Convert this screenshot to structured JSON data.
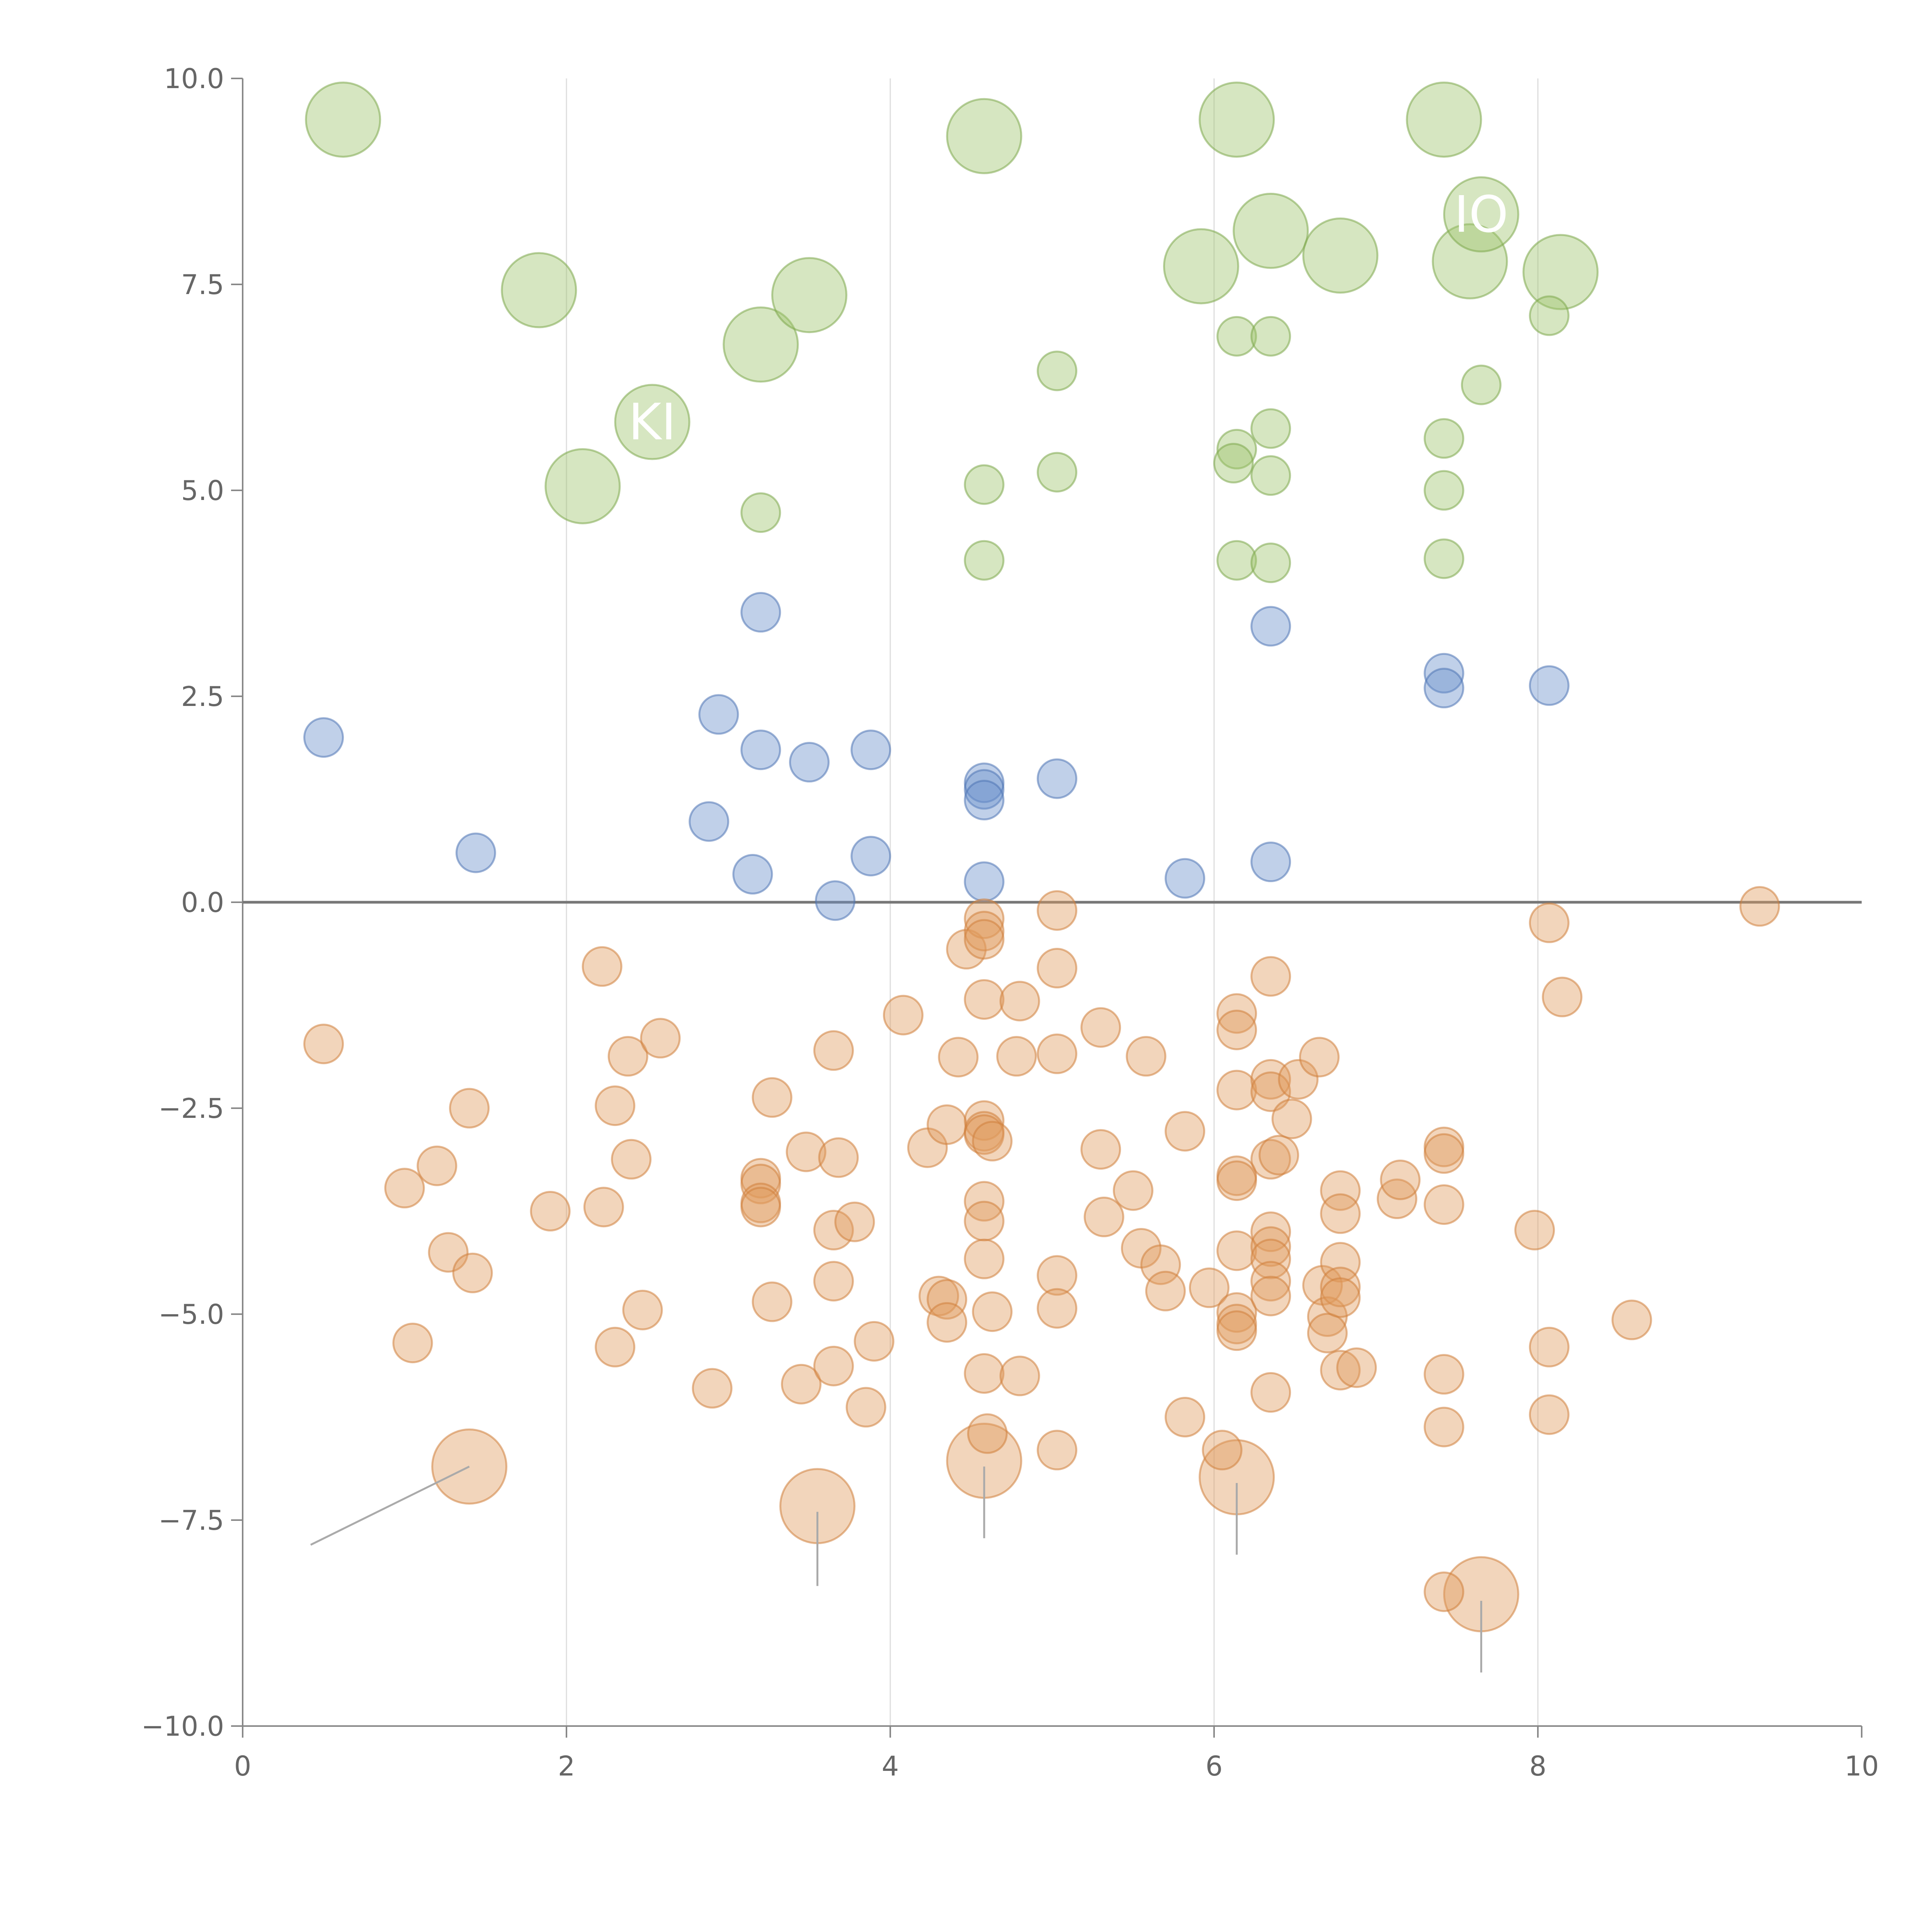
{
  "chart_data": {
    "type": "scatter",
    "title": "",
    "xlabel": "",
    "ylabel": "",
    "xlim": [
      0,
      10
    ],
    "ylim": [
      -10,
      10
    ],
    "grid": "vertical",
    "zero_line": true,
    "x_ticks": [
      "0",
      "2",
      "4",
      "6",
      "8",
      "10"
    ],
    "x_tick_values": [
      0,
      2,
      4,
      6,
      8,
      10
    ],
    "y_ticks": [
      "10.0",
      "7.5",
      "5.0",
      "2.5",
      "0.0",
      "−2.5",
      "−5.0",
      "−7.5",
      "−10.0"
    ],
    "y_tick_values": [
      10,
      7.5,
      5,
      2.5,
      0,
      -2.5,
      -5,
      -7.5,
      -10
    ],
    "colors": {
      "green": "#9dc46b",
      "green_stroke": "#7ea84d",
      "blue": "#6a8fcb",
      "blue_stroke": "#4f74b5",
      "orange": "#e09a5c",
      "orange_stroke": "#cf7f3d",
      "label": "#ffffff"
    },
    "series": [
      {
        "name": "green",
        "color": "green",
        "points": [
          [
            0.62,
            9.5,
            "L"
          ],
          [
            1.83,
            7.43,
            "L"
          ],
          [
            2.1,
            5.05,
            "L"
          ],
          [
            2.53,
            5.83,
            "L"
          ],
          [
            3.2,
            6.77,
            "L"
          ],
          [
            3.5,
            7.37,
            "L"
          ],
          [
            4.58,
            9.3,
            "L"
          ],
          [
            5.92,
            7.72,
            "L"
          ],
          [
            6.14,
            9.5,
            "L"
          ],
          [
            6.35,
            8.15,
            "L"
          ],
          [
            6.78,
            7.85,
            "L"
          ],
          [
            7.42,
            9.5,
            "L"
          ],
          [
            7.58,
            7.78,
            "L"
          ],
          [
            7.65,
            8.35,
            "L"
          ],
          [
            8.14,
            7.65,
            "L"
          ],
          [
            8.07,
            7.12,
            "S"
          ],
          [
            6.14,
            6.87,
            "S"
          ],
          [
            6.35,
            6.87,
            "S"
          ],
          [
            5.03,
            6.45,
            "S"
          ],
          [
            7.65,
            6.28,
            "S"
          ],
          [
            6.35,
            5.75,
            "S"
          ],
          [
            7.42,
            5.63,
            "S"
          ],
          [
            6.14,
            5.5,
            "S"
          ],
          [
            6.12,
            5.33,
            "S"
          ],
          [
            5.03,
            5.22,
            "S"
          ],
          [
            6.35,
            5.18,
            "S"
          ],
          [
            4.58,
            5.07,
            "S"
          ],
          [
            7.42,
            5.0,
            "S"
          ],
          [
            3.2,
            4.73,
            "S"
          ],
          [
            4.58,
            4.15,
            "S"
          ],
          [
            6.14,
            4.15,
            "S"
          ],
          [
            6.35,
            4.12,
            "S"
          ],
          [
            7.42,
            4.17,
            "S"
          ]
        ]
      },
      {
        "name": "blue",
        "color": "blue",
        "points": [
          [
            0.5,
            2.0,
            "S"
          ],
          [
            1.44,
            0.6,
            "S"
          ],
          [
            2.94,
            2.28,
            "S"
          ],
          [
            2.88,
            0.98,
            "S"
          ],
          [
            3.15,
            0.34,
            "S"
          ],
          [
            3.2,
            3.52,
            "S"
          ],
          [
            3.2,
            1.85,
            "S"
          ],
          [
            3.5,
            1.7,
            "S"
          ],
          [
            3.66,
            0.02,
            "S"
          ],
          [
            3.88,
            1.85,
            "S"
          ],
          [
            3.88,
            0.56,
            "S"
          ],
          [
            4.58,
            1.45,
            "S"
          ],
          [
            4.58,
            1.37,
            "S"
          ],
          [
            4.58,
            1.24,
            "S"
          ],
          [
            4.58,
            0.25,
            "S"
          ],
          [
            5.03,
            1.5,
            "S"
          ],
          [
            5.82,
            0.29,
            "S"
          ],
          [
            6.35,
            3.35,
            "S"
          ],
          [
            6.35,
            0.49,
            "S"
          ],
          [
            7.42,
            2.78,
            "S"
          ],
          [
            7.42,
            2.6,
            "S"
          ],
          [
            8.07,
            2.63,
            "S"
          ]
        ]
      },
      {
        "name": "orange",
        "color": "orange",
        "points": [
          [
            1.4,
            -6.85,
            "L"
          ],
          [
            3.55,
            -7.33,
            "L"
          ],
          [
            4.58,
            -6.78,
            "L"
          ],
          [
            6.14,
            -6.98,
            "L"
          ],
          [
            7.65,
            -8.4,
            "L"
          ],
          [
            0.5,
            -1.72,
            "S"
          ],
          [
            1.0,
            -3.47,
            "S"
          ],
          [
            1.05,
            -5.35,
            "S"
          ],
          [
            1.2,
            -3.2,
            "S"
          ],
          [
            1.27,
            -4.25,
            "S"
          ],
          [
            1.4,
            -2.5,
            "S"
          ],
          [
            1.42,
            -4.5,
            "S"
          ],
          [
            1.9,
            -3.75,
            "S"
          ],
          [
            2.22,
            -0.78,
            "S"
          ],
          [
            2.23,
            -3.7,
            "S"
          ],
          [
            2.3,
            -2.47,
            "S"
          ],
          [
            2.3,
            -5.4,
            "S"
          ],
          [
            2.38,
            -1.87,
            "S"
          ],
          [
            2.4,
            -3.12,
            "S"
          ],
          [
            2.47,
            -4.95,
            "S"
          ],
          [
            2.58,
            -1.65,
            "S"
          ],
          [
            2.9,
            -5.9,
            "S"
          ],
          [
            3.2,
            -3.35,
            "S"
          ],
          [
            3.2,
            -3.42,
            "S"
          ],
          [
            3.2,
            -3.65,
            "S"
          ],
          [
            3.2,
            -3.7,
            "S"
          ],
          [
            3.27,
            -4.85,
            "S"
          ],
          [
            3.27,
            -2.37,
            "S"
          ],
          [
            3.45,
            -5.85,
            "S"
          ],
          [
            3.48,
            -3.03,
            "S"
          ],
          [
            3.65,
            -1.8,
            "S"
          ],
          [
            3.65,
            -3.98,
            "S"
          ],
          [
            3.65,
            -4.6,
            "S"
          ],
          [
            3.65,
            -5.63,
            "S"
          ],
          [
            3.68,
            -3.1,
            "S"
          ],
          [
            3.78,
            -3.88,
            "S"
          ],
          [
            3.85,
            -6.13,
            "S"
          ],
          [
            3.9,
            -5.33,
            "S"
          ],
          [
            4.08,
            -1.37,
            "S"
          ],
          [
            4.23,
            -2.98,
            "S"
          ],
          [
            4.3,
            -4.78,
            "S"
          ],
          [
            4.35,
            -2.7,
            "S"
          ],
          [
            4.35,
            -4.82,
            "S"
          ],
          [
            4.35,
            -5.1,
            "S"
          ],
          [
            4.42,
            -1.88,
            "S"
          ],
          [
            4.47,
            -0.57,
            "S"
          ],
          [
            4.58,
            -0.2,
            "S"
          ],
          [
            4.58,
            -0.35,
            "S"
          ],
          [
            4.58,
            -0.45,
            "S"
          ],
          [
            4.58,
            -1.18,
            "S"
          ],
          [
            4.58,
            -2.65,
            "S"
          ],
          [
            4.58,
            -2.78,
            "S"
          ],
          [
            4.58,
            -2.82,
            "S"
          ],
          [
            4.58,
            -3.63,
            "S"
          ],
          [
            4.58,
            -3.87,
            "S"
          ],
          [
            4.58,
            -4.33,
            "S"
          ],
          [
            4.58,
            -5.72,
            "S"
          ],
          [
            4.6,
            -6.45,
            "S"
          ],
          [
            4.63,
            -2.9,
            "S"
          ],
          [
            4.63,
            -4.97,
            "S"
          ],
          [
            4.78,
            -1.87,
            "S"
          ],
          [
            4.8,
            -1.2,
            "S"
          ],
          [
            4.8,
            -5.75,
            "S"
          ],
          [
            5.03,
            -0.1,
            "S"
          ],
          [
            5.03,
            -0.8,
            "S"
          ],
          [
            5.03,
            -1.84,
            "S"
          ],
          [
            5.03,
            -4.53,
            "S"
          ],
          [
            5.03,
            -4.93,
            "S"
          ],
          [
            5.03,
            -6.65,
            "S"
          ],
          [
            5.3,
            -1.52,
            "S"
          ],
          [
            5.3,
            -3.0,
            "S"
          ],
          [
            5.32,
            -3.82,
            "S"
          ],
          [
            5.5,
            -3.5,
            "S"
          ],
          [
            5.55,
            -4.2,
            "S"
          ],
          [
            5.58,
            -1.87,
            "S"
          ],
          [
            5.67,
            -4.4,
            "S"
          ],
          [
            5.7,
            -4.72,
            "S"
          ],
          [
            5.82,
            -2.78,
            "S"
          ],
          [
            5.82,
            -6.25,
            "S"
          ],
          [
            5.97,
            -4.68,
            "S"
          ],
          [
            6.05,
            -6.65,
            "S"
          ],
          [
            6.14,
            -1.35,
            "S"
          ],
          [
            6.14,
            -1.55,
            "S"
          ],
          [
            6.14,
            -2.28,
            "S"
          ],
          [
            6.14,
            -3.32,
            "S"
          ],
          [
            6.14,
            -3.38,
            "S"
          ],
          [
            6.14,
            -4.23,
            "S"
          ],
          [
            6.14,
            -4.98,
            "S"
          ],
          [
            6.14,
            -5.12,
            "S"
          ],
          [
            6.14,
            -5.2,
            "S"
          ],
          [
            6.35,
            -0.9,
            "S"
          ],
          [
            6.35,
            -2.15,
            "S"
          ],
          [
            6.35,
            -2.3,
            "S"
          ],
          [
            6.35,
            -3.12,
            "S"
          ],
          [
            6.35,
            -4.0,
            "S"
          ],
          [
            6.35,
            -4.18,
            "S"
          ],
          [
            6.35,
            -4.33,
            "S"
          ],
          [
            6.35,
            -4.6,
            "S"
          ],
          [
            6.35,
            -4.78,
            "S"
          ],
          [
            6.35,
            -5.95,
            "S"
          ],
          [
            6.4,
            -3.07,
            "S"
          ],
          [
            6.48,
            -2.63,
            "S"
          ],
          [
            6.52,
            -2.15,
            "S"
          ],
          [
            6.65,
            -1.88,
            "S"
          ],
          [
            6.67,
            -4.65,
            "S"
          ],
          [
            6.7,
            -5.03,
            "S"
          ],
          [
            6.7,
            -5.23,
            "S"
          ],
          [
            6.78,
            -3.5,
            "S"
          ],
          [
            6.78,
            -3.78,
            "S"
          ],
          [
            6.78,
            -4.37,
            "S"
          ],
          [
            6.78,
            -4.67,
            "S"
          ],
          [
            6.78,
            -4.8,
            "S"
          ],
          [
            6.78,
            -5.68,
            "S"
          ],
          [
            6.88,
            -5.65,
            "S"
          ],
          [
            7.13,
            -3.6,
            "S"
          ],
          [
            7.15,
            -3.37,
            "S"
          ],
          [
            7.42,
            -2.97,
            "S"
          ],
          [
            7.42,
            -3.05,
            "S"
          ],
          [
            7.42,
            -3.67,
            "S"
          ],
          [
            7.42,
            -5.73,
            "S"
          ],
          [
            7.42,
            -6.37,
            "S"
          ],
          [
            7.42,
            -8.37,
            "S"
          ],
          [
            7.98,
            -3.98,
            "S"
          ],
          [
            8.07,
            -0.25,
            "S"
          ],
          [
            8.07,
            -5.4,
            "S"
          ],
          [
            8.07,
            -6.22,
            "S"
          ],
          [
            8.15,
            -1.15,
            "S"
          ],
          [
            8.58,
            -5.07,
            "S"
          ],
          [
            9.37,
            -0.05,
            "S"
          ]
        ]
      }
    ],
    "annotations": [
      {
        "text": "KI",
        "x": 2.53,
        "y": 5.83
      },
      {
        "text": "IO",
        "x": 7.65,
        "y": 8.35
      }
    ],
    "callouts": [
      {
        "from": [
          1.4,
          -6.85
        ],
        "to": [
          0.42,
          -7.8
        ]
      },
      {
        "from": [
          3.55,
          -7.4
        ],
        "to": [
          3.55,
          -8.3
        ]
      },
      {
        "from": [
          4.58,
          -6.85
        ],
        "to": [
          4.58,
          -7.72
        ]
      },
      {
        "from": [
          6.14,
          -7.05
        ],
        "to": [
          6.14,
          -7.92
        ]
      },
      {
        "from": [
          7.65,
          -8.48
        ],
        "to": [
          7.65,
          -9.35
        ]
      }
    ]
  }
}
